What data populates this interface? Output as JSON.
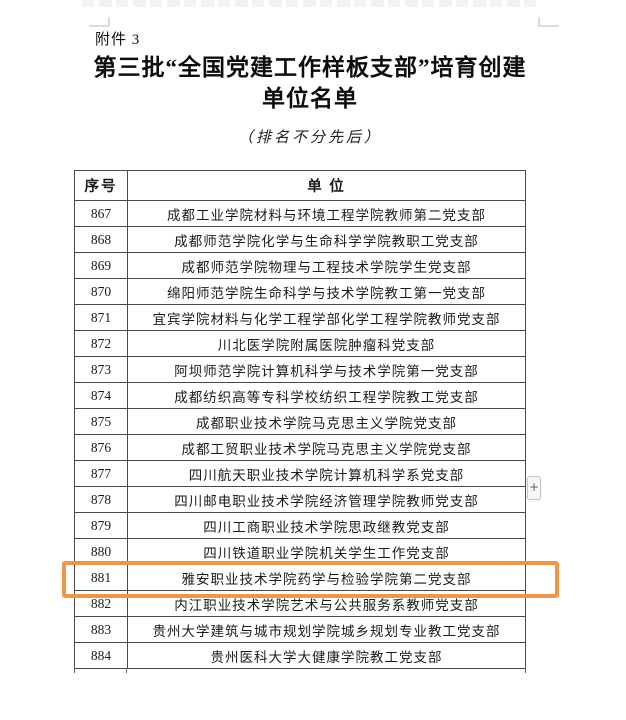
{
  "page": {
    "attachment_label": "附件 3",
    "title_line1": "第三批“全国党建工作样板支部”培育创建",
    "title_line2": "单位名单",
    "subtitle": "（排名不分先后）"
  },
  "table": {
    "headers": {
      "no": "序号",
      "unit": "单  位"
    },
    "rows": [
      {
        "no": "867",
        "unit": "成都工业学院材料与环境工程学院教师第二党支部"
      },
      {
        "no": "868",
        "unit": "成都师范学院化学与生命科学学院教职工党支部"
      },
      {
        "no": "869",
        "unit": "成都师范学院物理与工程技术学院学生党支部"
      },
      {
        "no": "870",
        "unit": "绵阳师范学院生命科学与技术学院教工第一党支部"
      },
      {
        "no": "871",
        "unit": "宜宾学院材料与化学工程学部化学工程学院教师党支部"
      },
      {
        "no": "872",
        "unit": "川北医学院附属医院肿瘤科党支部"
      },
      {
        "no": "873",
        "unit": "阿坝师范学院计算机科学与技术学院第一党支部"
      },
      {
        "no": "874",
        "unit": "成都纺织高等专科学校纺织工程学院教工党支部"
      },
      {
        "no": "875",
        "unit": "成都职业技术学院马克思主义学院党支部"
      },
      {
        "no": "876",
        "unit": "成都工贸职业技术学院马克思主义学院党支部"
      },
      {
        "no": "877",
        "unit": "四川航天职业技术学院计算机科学系党支部"
      },
      {
        "no": "878",
        "unit": "四川邮电职业技术学院经济管理学院教师党支部"
      },
      {
        "no": "879",
        "unit": "四川工商职业技术学院思政继教党支部"
      },
      {
        "no": "880",
        "unit": "四川铁道职业学院机关学生工作党支部"
      },
      {
        "no": "881",
        "unit": "雅安职业技术学院药学与检验学院第二党支部"
      },
      {
        "no": "882",
        "unit": "内江职业技术学院艺术与公共服务系教师党支部"
      },
      {
        "no": "883",
        "unit": "贵州大学建筑与城市规划学院城乡规划专业教工党支部"
      },
      {
        "no": "884",
        "unit": "贵州医科大学大健康学院教工党支部"
      }
    ]
  },
  "highlight": {
    "row_no": "881",
    "color": "#F0964A"
  },
  "controls": {
    "plus_button_label": "+"
  }
}
